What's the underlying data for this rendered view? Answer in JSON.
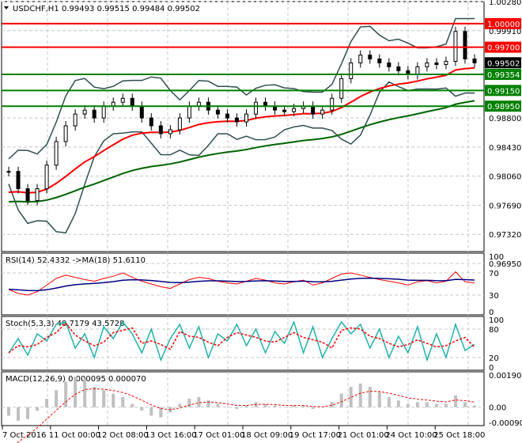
{
  "chart_data": [
    {
      "type": "candlestick",
      "title": "USDCHF,H1",
      "ohlc_header": [
        "0.99493",
        "0.99515",
        "0.99484",
        "0.99502"
      ],
      "y_ticks": [
        "1.00280",
        "0.99910",
        "0.98800",
        "0.98430",
        "0.98060",
        "0.97690",
        "0.97320",
        "0.96950"
      ],
      "ylim": [
        0.9695,
        1.0028
      ],
      "closes": [
        0.9812,
        0.979,
        0.9775,
        0.979,
        0.982,
        0.985,
        0.987,
        0.9885,
        0.989,
        0.988,
        0.9895,
        0.99,
        0.9905,
        0.9895,
        0.988,
        0.987,
        0.986,
        0.9865,
        0.988,
        0.9895,
        0.99,
        0.989,
        0.9885,
        0.988,
        0.9875,
        0.9885,
        0.99,
        0.9895,
        0.989,
        0.9888,
        0.9892,
        0.9895,
        0.9885,
        0.989,
        0.9905,
        0.993,
        0.995,
        0.996,
        0.9955,
        0.995,
        0.9945,
        0.994,
        0.9935,
        0.9945,
        0.995,
        0.9948,
        0.9952,
        0.999,
        0.9955,
        0.995
      ],
      "levels": [
        {
          "value": 1.0,
          "label": "1.00000",
          "color": "#ff0000"
        },
        {
          "value": 0.997,
          "label": "0.99700",
          "color": "#ff0000"
        },
        {
          "value": 0.99354,
          "label": "0.99354",
          "color": "#008000"
        },
        {
          "value": 0.9915,
          "label": "0.99150",
          "color": "#008000"
        },
        {
          "value": 0.9895,
          "label": "0.98950",
          "color": "#008000"
        }
      ],
      "current": {
        "value": 0.99502,
        "label": "0.99502"
      },
      "colors": {
        "fast_ma": "#ff0000",
        "slow_ma": "#006400",
        "bands": "#2f4f4f",
        "candles": "#000000"
      }
    },
    {
      "type": "line",
      "title": "RSI(14) 52.4332  ->MA(18) 51.6110",
      "y_ticks": [
        "100",
        "70",
        "30",
        "0"
      ],
      "ylim": [
        0,
        100
      ],
      "rsi": [
        40,
        33,
        30,
        36,
        48,
        60,
        66,
        62,
        58,
        55,
        60,
        64,
        70,
        62,
        55,
        50,
        45,
        42,
        50,
        58,
        62,
        60,
        55,
        52,
        50,
        55,
        60,
        57,
        52,
        50,
        54,
        57,
        48,
        52,
        60,
        68,
        70,
        66,
        62,
        58,
        55,
        52,
        48,
        54,
        56,
        52,
        55,
        72,
        54,
        52
      ],
      "colors": {
        "rsi": "#ff0000",
        "ma": "#000080"
      }
    },
    {
      "type": "line",
      "title": "Stoch(5,3,3) 48.7179 43.5728",
      "y_ticks": [
        "100",
        "80",
        "20",
        "0"
      ],
      "ylim": [
        0,
        100
      ],
      "main": [
        30,
        60,
        25,
        70,
        55,
        90,
        95,
        40,
        70,
        20,
        85,
        60,
        95,
        70,
        30,
        80,
        15,
        60,
        90,
        40,
        85,
        20,
        70,
        55,
        90,
        45,
        80,
        30,
        75,
        50,
        95,
        30,
        85,
        20,
        60,
        95,
        70,
        90,
        40,
        80,
        20,
        65,
        30,
        85,
        15,
        70,
        20,
        90,
        35,
        48
      ],
      "colors": {
        "main": "#20b2aa",
        "signal": "#ff0000"
      }
    },
    {
      "type": "bar",
      "title": "MACD(12,26,9) 0.000095 0.000070",
      "y_ticks": [
        "0.001904",
        "0.00",
        "-0.000901"
      ],
      "ylim": [
        -0.000901,
        0.001904
      ],
      "histogram": [
        -0.0005,
        -0.0008,
        -0.0007,
        -0.0002,
        0.0005,
        0.001,
        0.0015,
        0.0018,
        0.0017,
        0.0012,
        0.001,
        0.0008,
        0.0006,
        0.0002,
        -0.0002,
        -0.0005,
        -0.0006,
        -0.0003,
        0.0002,
        0.0005,
        0.0006,
        0.0004,
        0.0002,
        0.0,
        -0.0001,
        0.0001,
        0.0003,
        0.0002,
        0.0001,
        0.0,
        0.0001,
        0.0001,
        -0.0001,
        0.0,
        0.0003,
        0.0008,
        0.0012,
        0.0014,
        0.0012,
        0.0009,
        0.0006,
        0.0004,
        0.0002,
        0.0003,
        0.0003,
        0.0002,
        0.0002,
        0.0007,
        0.0003,
        0.0001
      ],
      "colors": {
        "hist": "#c0c0c0",
        "signal": "#ff0000"
      }
    }
  ],
  "time_axis": [
    "7 Oct 2016",
    "11 Oct 00:00",
    "12 Oct 08:00",
    "13 Oct 16:00",
    "17 Oct 01:00",
    "18 Oct 09:00",
    "19 Oct 17:00",
    "21 Oct 01:00",
    "24 Oct 10:00",
    "25 Oct 18:00"
  ]
}
